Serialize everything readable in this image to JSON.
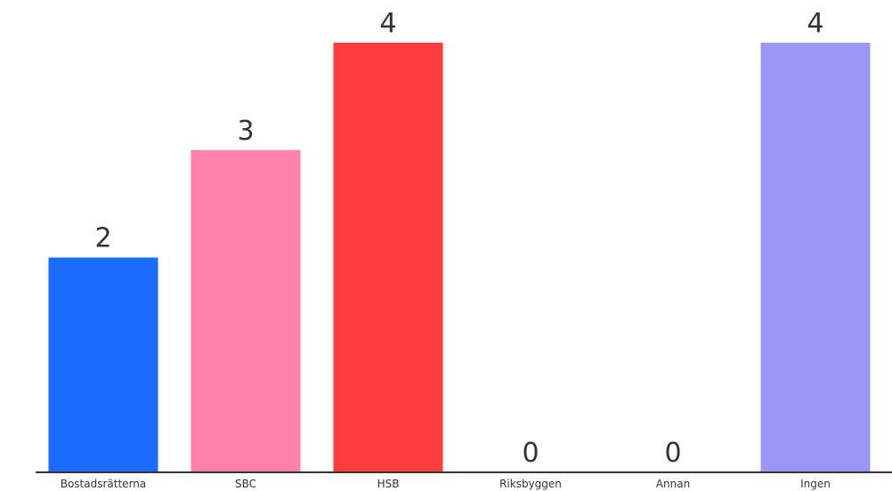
{
  "chart_data": {
    "type": "bar",
    "categories": [
      "Bostadsrätterna",
      "SBC",
      "HSB",
      "Riksbyggen",
      "Annan",
      "Ingen"
    ],
    "values": [
      2,
      3,
      4,
      0,
      0,
      4
    ],
    "colors": [
      "#1a6cff",
      "#ff80aa",
      "#ff3d3d",
      "#1a6cff",
      "#1a6cff",
      "#9999f5"
    ],
    "ylim": [
      0,
      4
    ],
    "grid": false,
    "legend": "none",
    "axis_color": "#333333"
  }
}
